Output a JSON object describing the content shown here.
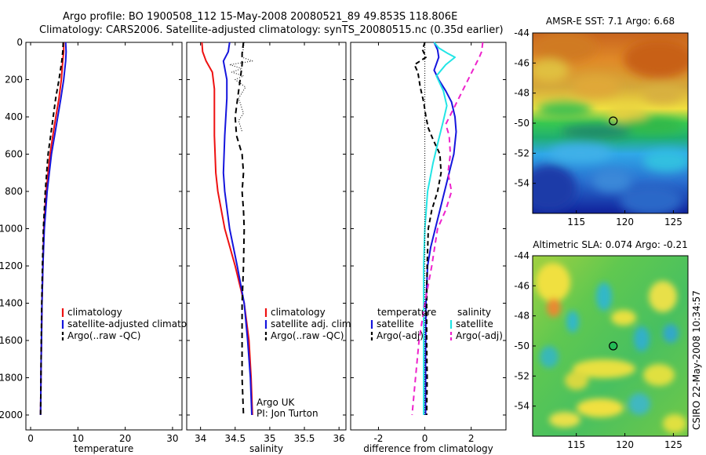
{
  "header": {
    "line1": "Argo profile: BO 1900508_112 15-May-2008 20080521_89 49.853S 118.806E",
    "line2": "Climatology: CARS2006. Satellite-adjusted climatology: synTS_20080515.nc (0.35d earlier)"
  },
  "colors": {
    "climatology": "#ee1111",
    "satellite": "#1515dd",
    "argo": "#000000",
    "cyan": "#22e5e5",
    "magenta": "#ee22cc"
  },
  "chart_data": [
    {
      "type": "line",
      "xlabel": "temperature",
      "xlim": [
        -1,
        32
      ],
      "ylim": [
        2080,
        0
      ],
      "xticks": [
        "0",
        "10",
        "20",
        "30"
      ],
      "yticks": [
        "0",
        "200",
        "400",
        "600",
        "800",
        "1000",
        "1200",
        "1400",
        "1600",
        "1800",
        "2000"
      ],
      "legend": [
        "climatology",
        "satellite-adjusted climatology",
        "Argo(..raw -QC)"
      ],
      "series": [
        {
          "name": "climatology",
          "color": "#ee1111",
          "width": 2,
          "dash": "",
          "x": [
            7.0,
            7.0,
            6.8,
            6.5,
            6.0,
            5.0,
            4.1,
            3.3,
            2.8,
            2.6,
            2.4,
            2.3,
            2.2,
            2.15,
            2.1
          ],
          "y": [
            0,
            50,
            100,
            200,
            300,
            450,
            600,
            800,
            1000,
            1200,
            1400,
            1600,
            1750,
            1900,
            2000
          ]
        },
        {
          "name": "satellite-adjusted climatology",
          "color": "#1515dd",
          "width": 2,
          "dash": "",
          "x": [
            7.4,
            7.5,
            7.4,
            7.0,
            6.4,
            5.4,
            4.4,
            3.5,
            2.9,
            2.6,
            2.4,
            2.3,
            2.2,
            2.15,
            2.1
          ],
          "y": [
            0,
            50,
            100,
            200,
            300,
            450,
            600,
            800,
            1000,
            1200,
            1400,
            1600,
            1750,
            1900,
            2000
          ]
        },
        {
          "name": "Argo(..raw -QC)",
          "color": "#000000",
          "width": 2,
          "dash": "6,4",
          "x": [
            6.9,
            6.8,
            6.6,
            6.0,
            5.3,
            4.5,
            3.7,
            3.1,
            2.7,
            2.5,
            2.35,
            2.25,
            2.2,
            2.15,
            2.1
          ],
          "y": [
            0,
            50,
            100,
            200,
            300,
            450,
            600,
            800,
            1000,
            1200,
            1400,
            1600,
            1750,
            1900,
            2000
          ]
        }
      ]
    },
    {
      "type": "line",
      "xlabel": "salinity",
      "xlim": [
        33.8,
        36.1
      ],
      "ylim": [
        2080,
        0
      ],
      "xticks": [
        "34",
        "34.5",
        "35",
        "35.5",
        "36"
      ],
      "legend": [
        "climatology",
        "satellite adj. clim.",
        "Argo(..raw -QC)"
      ],
      "annotation": [
        "Argo UK",
        "PI: Jon Turton"
      ],
      "series": [
        {
          "name": "climatology",
          "color": "#ee1111",
          "width": 2,
          "dash": "",
          "x": [
            34.02,
            34.03,
            34.08,
            34.17,
            34.2,
            34.2,
            34.22,
            34.25,
            34.35,
            34.5,
            34.63,
            34.7,
            34.73,
            34.75
          ],
          "y": [
            0,
            50,
            100,
            160,
            250,
            500,
            700,
            800,
            1000,
            1200,
            1400,
            1600,
            1800,
            2000
          ]
        },
        {
          "name": "satellite adj. clim.",
          "color": "#1515dd",
          "width": 2,
          "dash": "",
          "x": [
            34.42,
            34.4,
            34.33,
            34.38,
            34.38,
            34.35,
            34.33,
            34.35,
            34.42,
            34.53,
            34.63,
            34.68,
            34.72,
            34.74
          ],
          "y": [
            0,
            50,
            100,
            200,
            300,
            500,
            700,
            800,
            1000,
            1200,
            1400,
            1600,
            1800,
            2000
          ]
        },
        {
          "name": "Argo(..raw -QC)",
          "color": "#000000",
          "width": 2,
          "dash": "7,5",
          "x": [
            34.62,
            34.6,
            34.6,
            34.58,
            34.55,
            34.5,
            34.52,
            34.6,
            34.62,
            34.6,
            34.62,
            34.63,
            34.62,
            34.6,
            34.6,
            34.6,
            34.62
          ],
          "y": [
            0,
            60,
            120,
            180,
            260,
            400,
            500,
            600,
            700,
            800,
            900,
            1000,
            1200,
            1400,
            1600,
            1800,
            2000
          ]
        },
        {
          "name": "",
          "color": "#000000",
          "width": 1,
          "dash": "1,2",
          "x": [
            34.63,
            34.6,
            34.75,
            34.42,
            34.6,
            34.45,
            34.62,
            34.5,
            34.65,
            34.55,
            34.62,
            34.55,
            34.6
          ],
          "y": [
            0,
            80,
            100,
            120,
            140,
            160,
            180,
            200,
            240,
            300,
            380,
            420,
            480
          ]
        }
      ]
    },
    {
      "type": "line",
      "xlabel": "difference from climatology",
      "xlim": [
        -3.2,
        3.5
      ],
      "ylim": [
        2080,
        0
      ],
      "xticks": [
        "-2",
        "0",
        "2"
      ],
      "legend_headers": [
        "temperature",
        "salinity"
      ],
      "legend": [
        "satellite",
        "Argo(-adj)",
        "satellite",
        "Argo(-adj)"
      ],
      "series": [
        {
          "name": "satellite",
          "color": "#1515dd",
          "width": 2,
          "dash": "",
          "x": [
            0.4,
            0.55,
            0.6,
            0.4,
            0.6,
            0.9,
            1.15,
            1.3,
            1.35,
            1.25,
            1.05,
            0.85,
            0.65,
            0.45,
            0.25,
            0.12,
            0.05,
            0.03,
            0.03
          ],
          "y": [
            0,
            40,
            80,
            150,
            200,
            260,
            320,
            400,
            480,
            600,
            700,
            800,
            900,
            1000,
            1100,
            1200,
            1400,
            1700,
            2000
          ]
        },
        {
          "name": "Argo(-adj)",
          "color": "#000000",
          "width": 2,
          "dash": "6,4",
          "x": [
            0.0,
            -0.1,
            0.05,
            -0.45,
            -0.3,
            -0.2,
            -0.05,
            0.05,
            0.15,
            0.35,
            0.65,
            0.7,
            0.55,
            0.3,
            0.15,
            0.1,
            0.08,
            0.08,
            0.1,
            0.08
          ],
          "y": [
            0,
            40,
            80,
            120,
            160,
            240,
            320,
            400,
            460,
            520,
            600,
            700,
            800,
            900,
            1000,
            1200,
            1400,
            1600,
            1800,
            2000
          ]
        },
        {
          "name": "satellite",
          "color": "#22e5e5",
          "width": 2,
          "dash": "",
          "x": [
            0.4,
            0.6,
            1.0,
            1.3,
            0.9,
            0.5,
            0.8,
            0.95,
            0.8,
            0.6,
            0.35,
            0.12,
            0.0,
            -0.05,
            -0.05,
            -0.05
          ],
          "y": [
            0,
            30,
            60,
            80,
            120,
            180,
            260,
            340,
            420,
            520,
            650,
            800,
            1000,
            1200,
            1600,
            2000
          ]
        },
        {
          "name": "Argo(-adj)",
          "color": "#ee22cc",
          "width": 2,
          "dash": "7,5",
          "x": [
            2.5,
            2.45,
            2.35,
            0.9,
            1.05,
            1.1,
            1.0,
            1.15,
            0.9,
            0.55,
            0.3,
            0.0,
            -0.25,
            -0.4,
            -0.55
          ],
          "y": [
            0,
            50,
            80,
            440,
            500,
            600,
            700,
            800,
            900,
            1000,
            1200,
            1400,
            1600,
            1800,
            2000
          ]
        },
        {
          "name": "",
          "color": "#000000",
          "width": 1,
          "dash": "1,2",
          "x": [
            0,
            0
          ],
          "y": [
            0,
            2000
          ]
        }
      ]
    },
    {
      "type": "heatmap",
      "title": "AMSR-E SST: 7.1  Argo: 6.68",
      "xlim": [
        110.5,
        126.5
      ],
      "ylim": [
        -56,
        -44
      ],
      "xticks": [
        "115",
        "120",
        "125"
      ],
      "yticks": [
        "-44",
        "-46",
        "-48",
        "-50",
        "-52",
        "-54"
      ],
      "marker": {
        "lon": 118.8,
        "lat": -49.85,
        "fill": "none"
      }
    },
    {
      "type": "heatmap",
      "title": "Altimetric SLA: 0.074  Argo: -0.21",
      "xlim": [
        110.5,
        126.5
      ],
      "ylim": [
        -56,
        -44
      ],
      "xticks": [
        "115",
        "120",
        "125"
      ],
      "yticks": [
        "-44",
        "-46",
        "-48",
        "-50",
        "-52",
        "-54"
      ],
      "marker": {
        "lon": 118.8,
        "lat": -50.0,
        "fill": "#22bb55"
      }
    }
  ],
  "footer": {
    "side_label": "CSIRO 22-May-2008 10:34:57"
  }
}
